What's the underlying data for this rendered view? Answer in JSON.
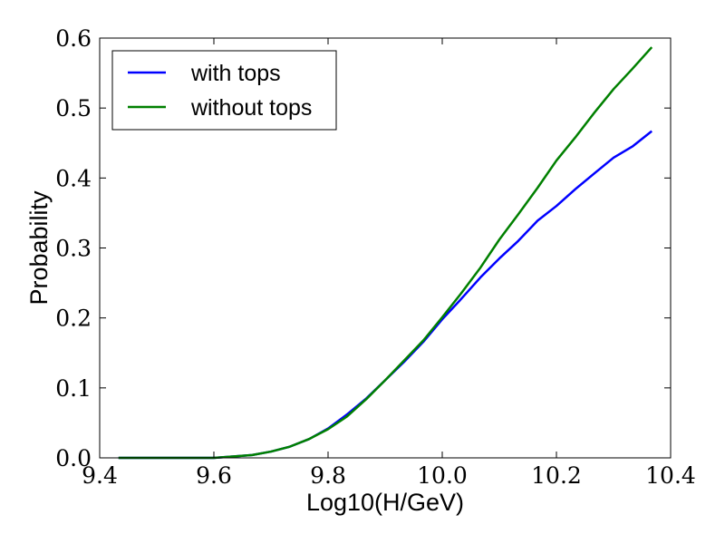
{
  "chart_data": {
    "type": "line",
    "xlabel": "Log10(H/GeV)",
    "ylabel": "Probability",
    "xlim": [
      9.4,
      10.4
    ],
    "ylim": [
      0.0,
      0.6
    ],
    "xticks": [
      9.4,
      9.6,
      9.8,
      10.0,
      10.2,
      10.4
    ],
    "xtick_labels": [
      "9.4",
      "9.6",
      "9.8",
      "10.0",
      "10.2",
      "10.4"
    ],
    "yticks": [
      0.0,
      0.1,
      0.2,
      0.3,
      0.4,
      0.5,
      0.6
    ],
    "ytick_labels": [
      "0.0",
      "0.1",
      "0.2",
      "0.3",
      "0.4",
      "0.5",
      "0.6"
    ],
    "grid": false,
    "legend_position": "top-left",
    "series": [
      {
        "name": "with tops",
        "color": "#0000ff",
        "x": [
          9.433,
          9.467,
          9.5,
          9.533,
          9.567,
          9.6,
          9.633,
          9.667,
          9.7,
          9.733,
          9.767,
          9.8,
          9.833,
          9.867,
          9.9,
          9.933,
          9.967,
          10.0,
          10.033,
          10.067,
          10.1,
          10.133,
          10.167,
          10.2,
          10.233,
          10.267,
          10.3,
          10.333,
          10.367
        ],
        "y": [
          0.0,
          0.0,
          0.0,
          0.0,
          0.0,
          0.0,
          0.002,
          0.004,
          0.009,
          0.016,
          0.027,
          0.042,
          0.062,
          0.085,
          0.111,
          0.137,
          0.166,
          0.198,
          0.227,
          0.258,
          0.285,
          0.31,
          0.339,
          0.36,
          0.384,
          0.407,
          0.429,
          0.445,
          0.467
        ]
      },
      {
        "name": "without tops",
        "color": "#008000",
        "x": [
          9.433,
          9.467,
          9.5,
          9.533,
          9.567,
          9.6,
          9.633,
          9.667,
          9.7,
          9.733,
          9.767,
          9.8,
          9.833,
          9.867,
          9.9,
          9.933,
          9.967,
          10.0,
          10.033,
          10.067,
          10.1,
          10.133,
          10.167,
          10.2,
          10.233,
          10.267,
          10.3,
          10.333,
          10.367
        ],
        "y": [
          0.0,
          0.0,
          0.0,
          0.0,
          0.0,
          0.0,
          0.002,
          0.004,
          0.009,
          0.016,
          0.027,
          0.041,
          0.059,
          0.084,
          0.111,
          0.139,
          0.168,
          0.201,
          0.235,
          0.272,
          0.312,
          0.348,
          0.386,
          0.425,
          0.458,
          0.494,
          0.527,
          0.556,
          0.587
        ]
      }
    ]
  }
}
